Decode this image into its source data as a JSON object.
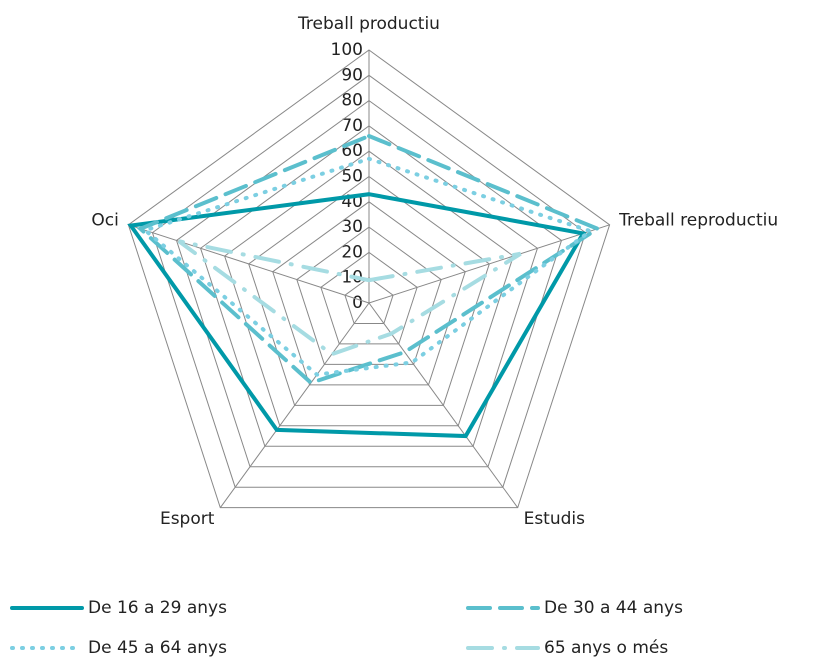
{
  "chart_data": {
    "type": "radar",
    "categories": [
      "Treball productiu",
      "Treball reproductiu",
      "Estudis",
      "Esport",
      "Oci"
    ],
    "series": [
      {
        "name": "De 16 a 29 anys",
        "color": "#0099a8",
        "style": "solid",
        "values": [
          43,
          89,
          65,
          62,
          99
        ]
      },
      {
        "name": "De 30 a 44 anys",
        "color": "#5bbfcd",
        "style": "dashed",
        "values": [
          66,
          95,
          24,
          39,
          95
        ]
      },
      {
        "name": "De 45 a 64 anys",
        "color": "#7ccfe2",
        "style": "dotted",
        "values": [
          57,
          92,
          29,
          35,
          93
        ]
      },
      {
        "name": "65 anys o més",
        "color": "#a6dce2",
        "style": "dashdot",
        "values": [
          9,
          63,
          15,
          25,
          79
        ]
      }
    ],
    "ylim": [
      0,
      100
    ],
    "yticks": [
      0,
      10,
      20,
      30,
      40,
      50,
      60,
      70,
      80,
      90,
      100
    ],
    "grid": true
  }
}
